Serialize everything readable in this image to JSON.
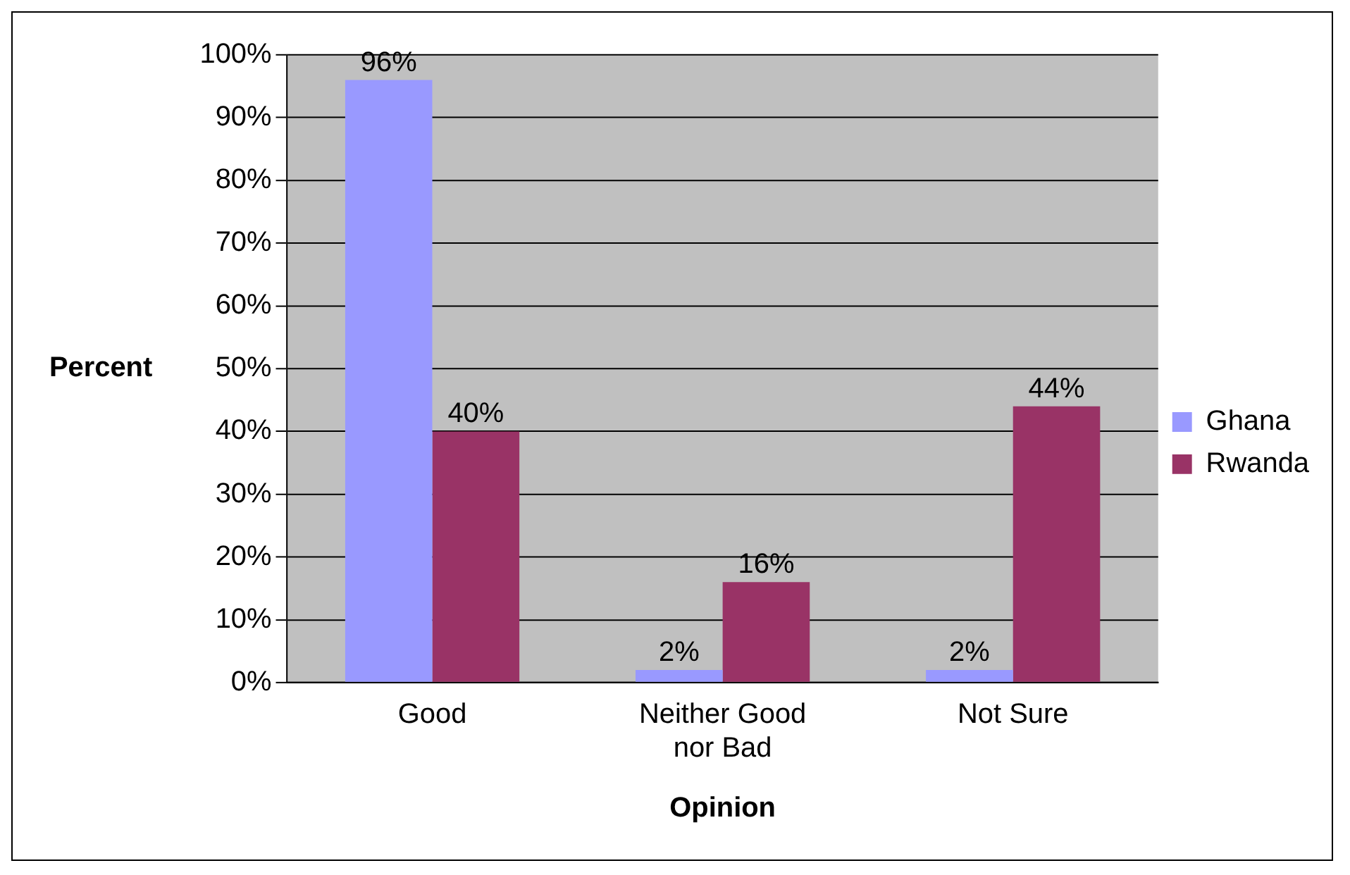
{
  "chart_data": {
    "type": "bar",
    "xlabel": "Opinion",
    "ylabel": "Percent",
    "categories": [
      "Good",
      "Neither Good nor Bad",
      "Not Sure"
    ],
    "series": [
      {
        "name": "Ghana",
        "color": "#9999ff",
        "values": [
          96,
          2,
          2
        ],
        "value_labels": [
          "96%",
          "2%",
          "2%"
        ]
      },
      {
        "name": "Rwanda",
        "color": "#993366",
        "values": [
          40,
          16,
          44
        ],
        "value_labels": [
          "40%",
          "16%",
          "44%"
        ]
      }
    ],
    "ylim": [
      0,
      100
    ],
    "yticks": [
      {
        "value": 0,
        "label": "0%"
      },
      {
        "value": 10,
        "label": "10%"
      },
      {
        "value": 20,
        "label": "20%"
      },
      {
        "value": 30,
        "label": "30%"
      },
      {
        "value": 40,
        "label": "40%"
      },
      {
        "value": 50,
        "label": "50%"
      },
      {
        "value": 60,
        "label": "60%"
      },
      {
        "value": 70,
        "label": "70%"
      },
      {
        "value": 80,
        "label": "80%"
      },
      {
        "value": 90,
        "label": "90%"
      },
      {
        "value": 100,
        "label": "100%"
      }
    ],
    "grid": "y",
    "legend": "right"
  }
}
